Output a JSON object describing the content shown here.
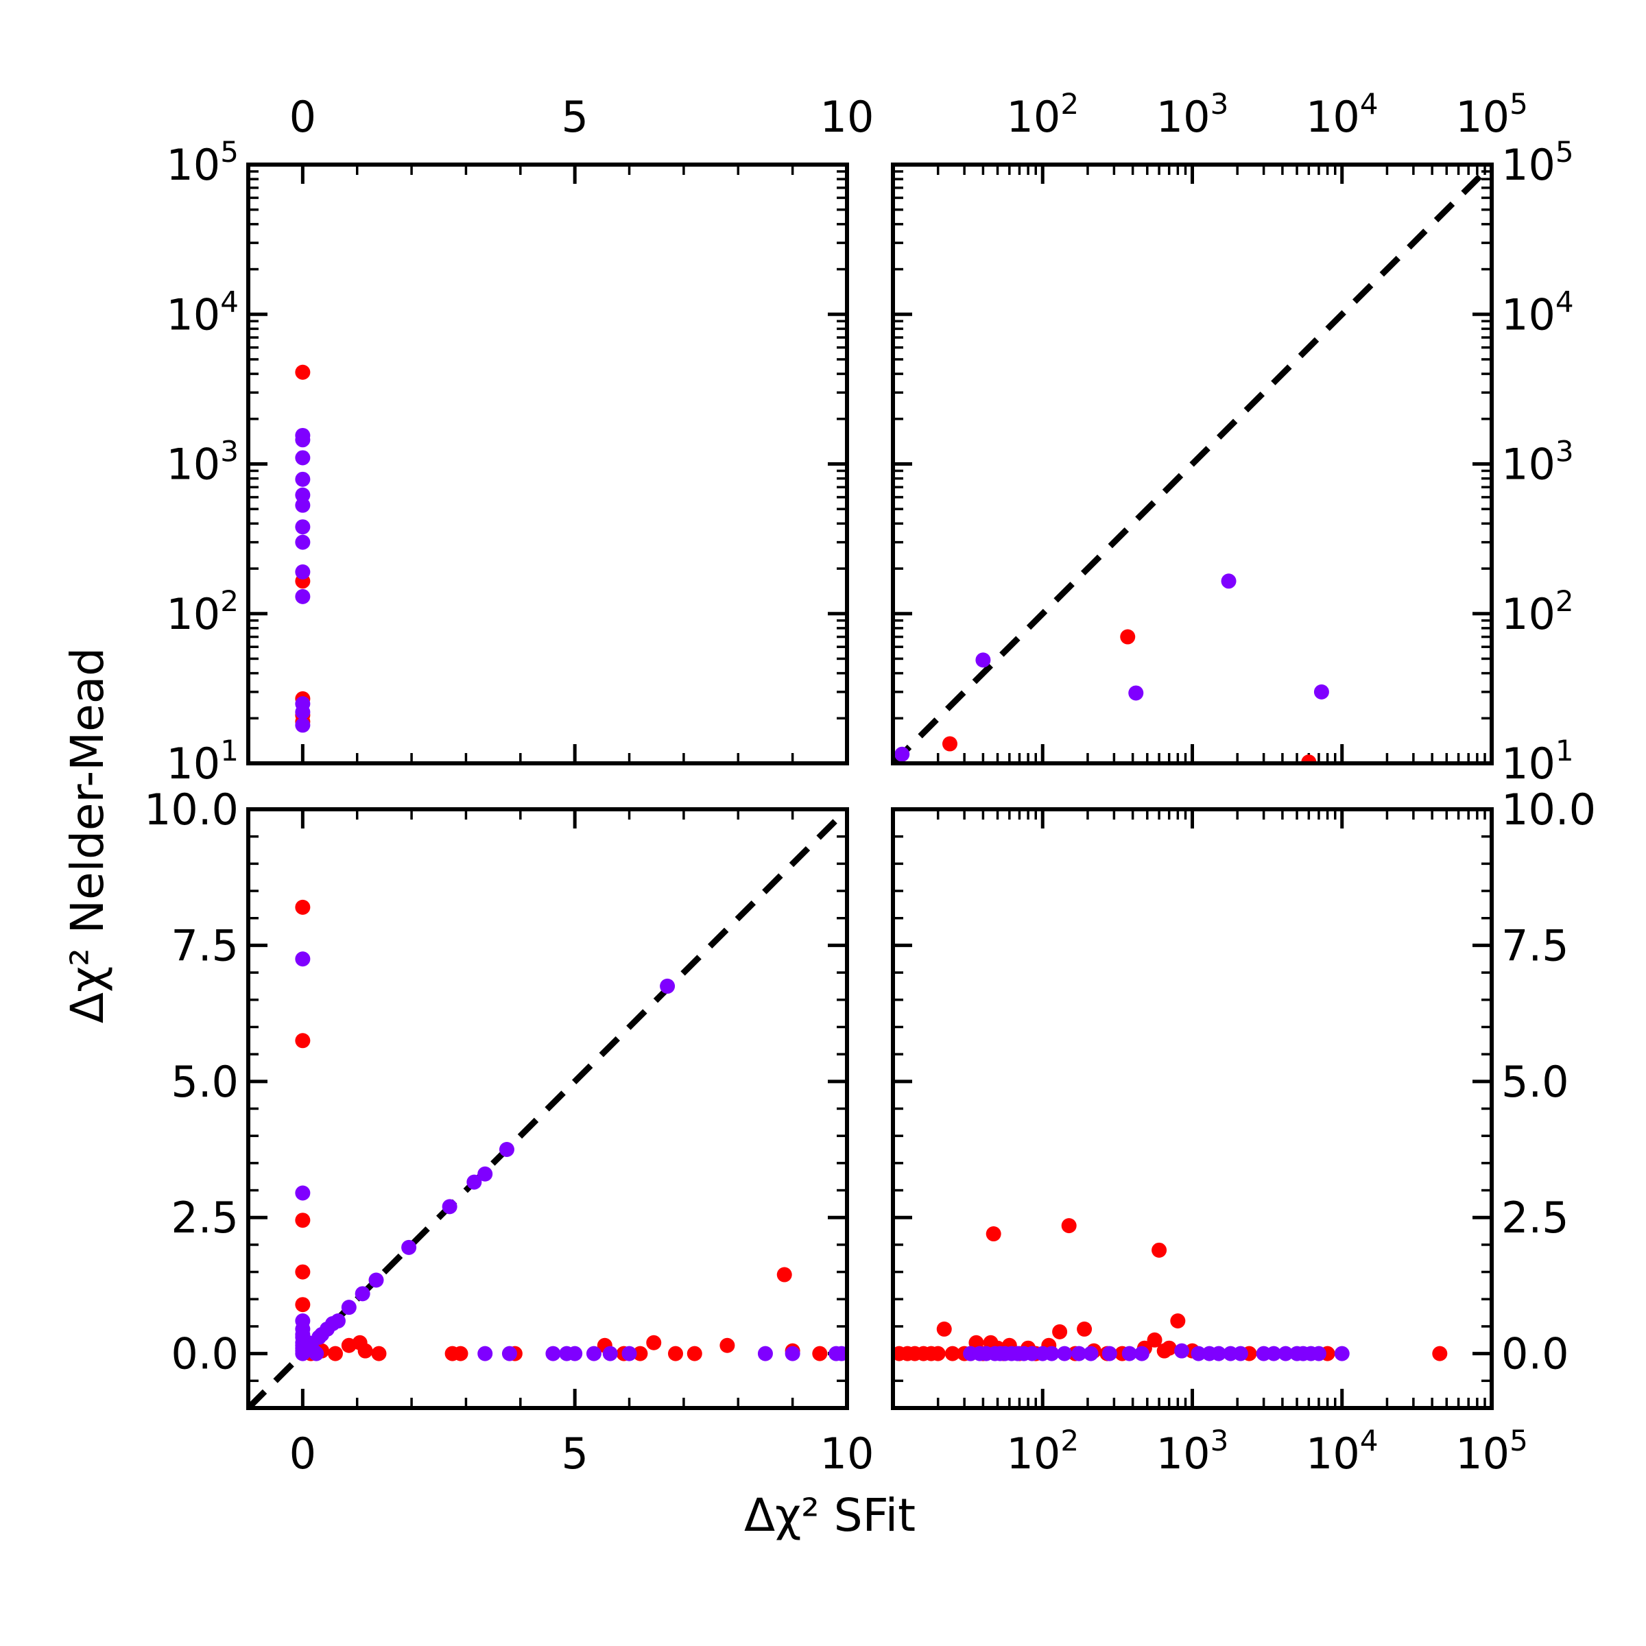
{
  "figure": {
    "xlabel": "Δχ² SFit",
    "ylabel": "Δχ² Nelder-Mead",
    "colors": {
      "red": "#ff0000",
      "purple": "#7f00ff",
      "axes": "#000000",
      "diagonal": "#000000"
    }
  },
  "chart_data": [
    {
      "panel": "top-left",
      "type": "scatter",
      "x_scale": "linear",
      "xlim": [
        -1,
        10
      ],
      "x_ticks": [
        0,
        5,
        10
      ],
      "x_tick_labels": [
        "0",
        "5",
        "10"
      ],
      "x_labels_side": "top",
      "y_scale": "log",
      "ylim": [
        10,
        100000
      ],
      "y_ticks": [
        10,
        100,
        1000,
        10000,
        100000
      ],
      "y_tick_labels": [
        "10^1",
        "10^2",
        "10^3",
        "10^4",
        "10^5"
      ],
      "y_labels_side": "left",
      "diagonal": false,
      "series": [
        {
          "color": "red",
          "points": [
            [
              0,
              4100
            ],
            [
              0,
              165
            ],
            [
              0,
              27
            ],
            [
              0,
              21
            ],
            [
              0,
              19
            ]
          ]
        },
        {
          "color": "purple",
          "points": [
            [
              0,
              1550
            ],
            [
              0,
              1450
            ],
            [
              0,
              1100
            ],
            [
              0,
              790
            ],
            [
              0,
              620
            ],
            [
              0,
              530
            ],
            [
              0,
              380
            ],
            [
              0,
              300
            ],
            [
              0,
              190
            ],
            [
              0,
              130
            ],
            [
              0,
              25
            ],
            [
              0,
              22
            ],
            [
              0,
              18
            ]
          ]
        }
      ]
    },
    {
      "panel": "top-right",
      "type": "scatter",
      "x_scale": "log",
      "xlim": [
        10,
        100000
      ],
      "x_ticks": [
        100,
        1000,
        10000,
        100000
      ],
      "x_tick_labels": [
        "10^2",
        "10^3",
        "10^4",
        "10^5"
      ],
      "x_labels_side": "top",
      "y_scale": "log",
      "ylim": [
        10,
        100000
      ],
      "y_ticks": [
        10,
        100,
        1000,
        10000,
        100000
      ],
      "y_tick_labels": [
        "10^1",
        "10^2",
        "10^3",
        "10^4",
        "10^5"
      ],
      "y_labels_side": "right",
      "diagonal": true,
      "series": [
        {
          "color": "red",
          "points": [
            [
              24,
              13.5
            ],
            [
              370,
              70
            ],
            [
              6000,
              10.2
            ]
          ]
        },
        {
          "color": "purple",
          "points": [
            [
              11.5,
              11.5
            ],
            [
              40,
              49
            ],
            [
              420,
              29.5
            ],
            [
              1750,
              165
            ],
            [
              7300,
              30
            ]
          ]
        }
      ]
    },
    {
      "panel": "bottom-left",
      "type": "scatter",
      "x_scale": "linear",
      "xlim": [
        -1,
        10
      ],
      "x_ticks": [
        0,
        5,
        10
      ],
      "x_tick_labels": [
        "0",
        "5",
        "10"
      ],
      "x_labels_side": "bottom",
      "y_scale": "linear",
      "ylim": [
        -1,
        10
      ],
      "y_ticks": [
        0,
        2.5,
        5,
        7.5,
        10
      ],
      "y_tick_labels": [
        "0.0",
        "2.5",
        "5.0",
        "7.5",
        "10.0"
      ],
      "y_labels_side": "left",
      "diagonal": true,
      "series": [
        {
          "color": "red",
          "points": [
            [
              0,
              8.2
            ],
            [
              0,
              5.75
            ],
            [
              0,
              2.45
            ],
            [
              0,
              1.5
            ],
            [
              0,
              0.9
            ],
            [
              0.15,
              0
            ],
            [
              0.35,
              0.05
            ],
            [
              0.6,
              0
            ],
            [
              0.85,
              0.15
            ],
            [
              1.05,
              0.2
            ],
            [
              1.15,
              0.05
            ],
            [
              1.4,
              0
            ],
            [
              2.75,
              0
            ],
            [
              2.9,
              0
            ],
            [
              3.9,
              0
            ],
            [
              5.55,
              0.15
            ],
            [
              5.9,
              0
            ],
            [
              6.2,
              0
            ],
            [
              6.45,
              0.2
            ],
            [
              6.85,
              0
            ],
            [
              7.2,
              0
            ],
            [
              7.8,
              0.15
            ],
            [
              8.85,
              1.45
            ],
            [
              9.0,
              0.05
            ],
            [
              9.5,
              0
            ]
          ]
        },
        {
          "color": "purple",
          "points": [
            [
              0,
              7.25
            ],
            [
              0,
              2.95
            ],
            [
              0,
              0.6
            ],
            [
              0,
              0.45
            ],
            [
              0,
              0.35
            ],
            [
              0,
              0.3
            ],
            [
              0,
              0.2
            ],
            [
              0,
              0.15
            ],
            [
              0,
              0.1
            ],
            [
              0,
              0.05
            ],
            [
              0,
              0
            ],
            [
              0.05,
              0.1
            ],
            [
              0.1,
              0.2
            ],
            [
              0.15,
              0.15
            ],
            [
              0.2,
              0.05
            ],
            [
              0.25,
              0
            ],
            [
              0.3,
              0.3
            ],
            [
              0.35,
              0.35
            ],
            [
              0.45,
              0.45
            ],
            [
              0.55,
              0.55
            ],
            [
              0.65,
              0.6
            ],
            [
              0.85,
              0.85
            ],
            [
              1.1,
              1.1
            ],
            [
              1.35,
              1.35
            ],
            [
              1.95,
              1.95
            ],
            [
              2.7,
              2.7
            ],
            [
              3.15,
              3.15
            ],
            [
              3.35,
              3.3
            ],
            [
              3.75,
              3.75
            ],
            [
              6.7,
              6.75
            ],
            [
              3.35,
              0
            ],
            [
              3.8,
              0
            ],
            [
              4.6,
              0
            ],
            [
              4.85,
              0
            ],
            [
              5.0,
              0
            ],
            [
              5.35,
              0
            ],
            [
              5.65,
              0
            ],
            [
              6.0,
              0
            ],
            [
              8.5,
              0
            ],
            [
              9.0,
              0
            ],
            [
              9.8,
              0
            ],
            [
              9.9,
              0
            ]
          ]
        }
      ]
    },
    {
      "panel": "bottom-right",
      "type": "scatter",
      "x_scale": "log",
      "xlim": [
        10,
        100000
      ],
      "x_ticks": [
        100,
        1000,
        10000,
        100000
      ],
      "x_tick_labels": [
        "10^2",
        "10^3",
        "10^4",
        "10^5"
      ],
      "x_labels_side": "bottom",
      "y_scale": "linear",
      "ylim": [
        -1,
        10
      ],
      "y_ticks": [
        0,
        2.5,
        5,
        7.5,
        10
      ],
      "y_tick_labels": [
        "0.0",
        "2.5",
        "5.0",
        "7.5",
        "10.0"
      ],
      "y_labels_side": "right",
      "diagonal": false,
      "series": [
        {
          "color": "red",
          "points": [
            [
              11,
              0
            ],
            [
              12.5,
              0
            ],
            [
              14,
              0
            ],
            [
              16,
              0
            ],
            [
              18,
              0
            ],
            [
              20,
              0
            ],
            [
              22,
              0.45
            ],
            [
              25,
              0
            ],
            [
              30,
              0
            ],
            [
              33,
              0
            ],
            [
              36,
              0.2
            ],
            [
              40,
              0
            ],
            [
              45,
              0.2
            ],
            [
              47,
              2.2
            ],
            [
              50,
              0.1
            ],
            [
              55,
              0
            ],
            [
              60,
              0.15
            ],
            [
              70,
              0
            ],
            [
              80,
              0.1
            ],
            [
              90,
              0
            ],
            [
              110,
              0.15
            ],
            [
              130,
              0.4
            ],
            [
              150,
              2.35
            ],
            [
              165,
              0
            ],
            [
              190,
              0.45
            ],
            [
              220,
              0.05
            ],
            [
              270,
              0
            ],
            [
              340,
              0
            ],
            [
              480,
              0.1
            ],
            [
              560,
              0.25
            ],
            [
              600,
              1.9
            ],
            [
              650,
              0.05
            ],
            [
              700,
              0.1
            ],
            [
              800,
              0.6
            ],
            [
              1000,
              0.05
            ],
            [
              2400,
              0
            ],
            [
              8000,
              0
            ],
            [
              45000,
              0
            ]
          ]
        },
        {
          "color": "purple",
          "points": [
            [
              33,
              0
            ],
            [
              38,
              0
            ],
            [
              42,
              0
            ],
            [
              48,
              0
            ],
            [
              52,
              0
            ],
            [
              56,
              0
            ],
            [
              62,
              0
            ],
            [
              68,
              0
            ],
            [
              75,
              0
            ],
            [
              85,
              0
            ],
            [
              100,
              0
            ],
            [
              115,
              0
            ],
            [
              140,
              0
            ],
            [
              175,
              0
            ],
            [
              210,
              0
            ],
            [
              280,
              0
            ],
            [
              380,
              0
            ],
            [
              460,
              0
            ],
            [
              850,
              0.05
            ],
            [
              1100,
              0
            ],
            [
              1300,
              0
            ],
            [
              1500,
              0
            ],
            [
              1800,
              0
            ],
            [
              2100,
              0
            ],
            [
              3000,
              0
            ],
            [
              3500,
              0
            ],
            [
              4200,
              0
            ],
            [
              5000,
              0
            ],
            [
              5500,
              0
            ],
            [
              6200,
              0
            ],
            [
              7000,
              0
            ],
            [
              10000,
              0
            ]
          ]
        }
      ]
    }
  ]
}
